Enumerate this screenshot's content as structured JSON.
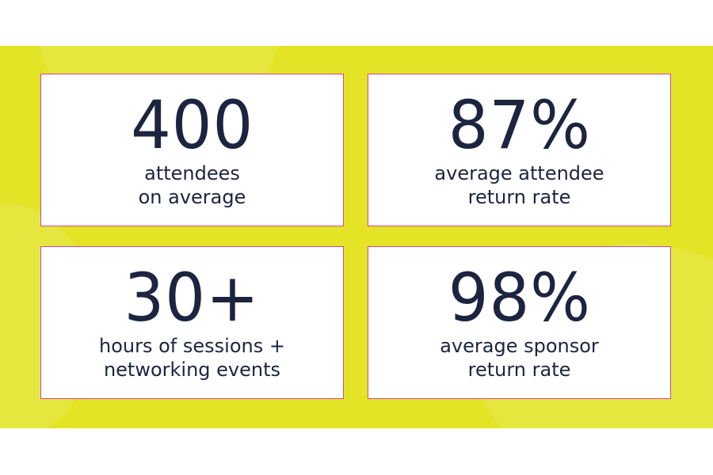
{
  "colors": {
    "background": "#e2e425",
    "card_border": "#e0409a",
    "text": "#1c2440"
  },
  "stats": [
    {
      "value": "400",
      "line1": "attendees",
      "line2": "on average"
    },
    {
      "value": "87%",
      "line1": "average attendee",
      "line2": "return rate"
    },
    {
      "value": "30+",
      "line1": "hours of sessions +",
      "line2": "networking events"
    },
    {
      "value": "98%",
      "line1": "average sponsor",
      "line2": "return rate"
    }
  ]
}
